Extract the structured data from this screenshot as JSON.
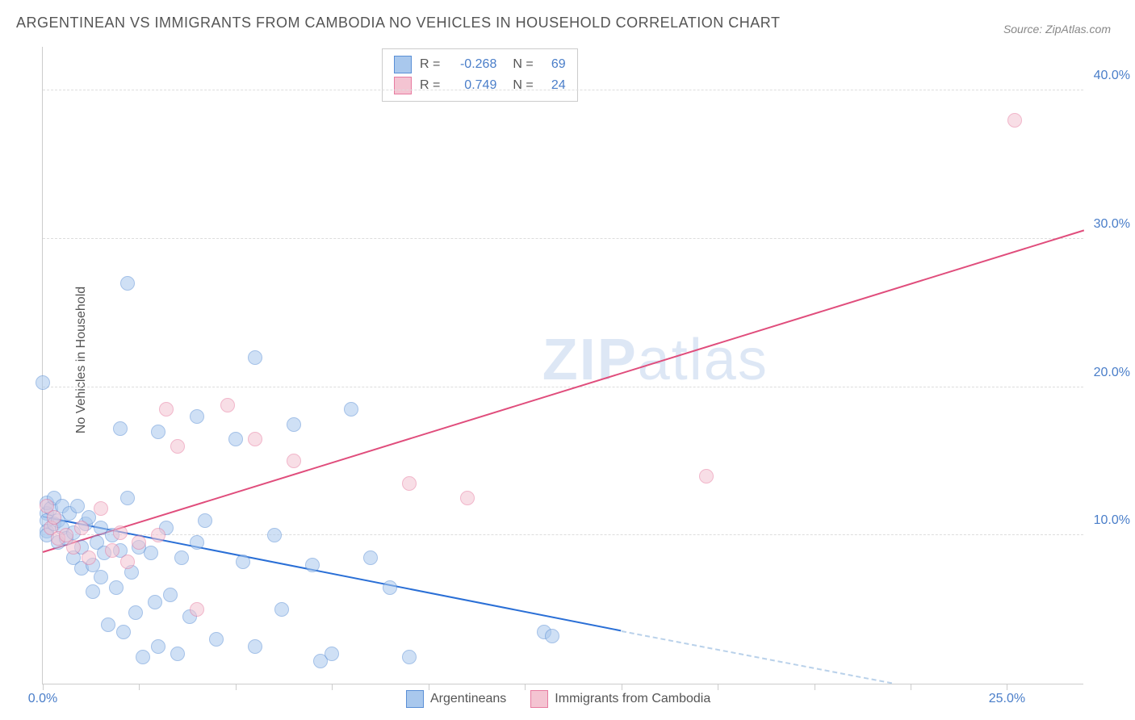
{
  "title": "ARGENTINEAN VS IMMIGRANTS FROM CAMBODIA NO VEHICLES IN HOUSEHOLD CORRELATION CHART",
  "source": "Source: ZipAtlas.com",
  "ylabel": "No Vehicles in Household",
  "watermark_bold": "ZIP",
  "watermark_light": "atlas",
  "chart": {
    "type": "scatter",
    "background_color": "#ffffff",
    "grid_color": "#dddddd",
    "axis_color": "#cccccc",
    "tick_label_color": "#4a7ec9",
    "label_color": "#555555",
    "title_fontsize": 18,
    "label_fontsize": 16,
    "tick_fontsize": 16,
    "xlim": [
      0,
      27
    ],
    "ylim": [
      0,
      43
    ],
    "yticks": [
      10,
      20,
      30,
      40
    ],
    "ytick_labels": [
      "10.0%",
      "20.0%",
      "30.0%",
      "40.0%"
    ],
    "xticks": [
      0,
      2.5,
      5,
      7.5,
      10,
      12.5,
      15,
      17.5,
      20,
      22.5,
      25
    ],
    "xtick_labels_shown": {
      "0": "0.0%",
      "25": "25.0%"
    },
    "marker_radius": 9,
    "marker_stroke_width": 1.5,
    "series": [
      {
        "name": "Argentineans",
        "fill": "#a9c8ed",
        "stroke": "#5a8fd6",
        "fill_opacity": 0.55,
        "R": "-0.268",
        "N": "69",
        "trend": {
          "x1": 0,
          "y1": 11.2,
          "x2": 15,
          "y2": 3.5,
          "color": "#2a6fd6",
          "width": 2
        },
        "trend_dashed": {
          "x1": 15,
          "y1": 3.5,
          "x2": 22,
          "y2": 0,
          "color": "#b9d1ea"
        },
        "points": [
          [
            0.0,
            20.3
          ],
          [
            0.1,
            11.5
          ],
          [
            0.1,
            11.0
          ],
          [
            0.1,
            10.3
          ],
          [
            0.1,
            10.0
          ],
          [
            0.1,
            12.2
          ],
          [
            0.2,
            11.8
          ],
          [
            0.3,
            12.5
          ],
          [
            0.3,
            10.8
          ],
          [
            0.4,
            11.0
          ],
          [
            0.4,
            9.5
          ],
          [
            0.5,
            10.5
          ],
          [
            0.5,
            12.0
          ],
          [
            0.6,
            9.8
          ],
          [
            0.7,
            11.5
          ],
          [
            0.8,
            10.2
          ],
          [
            0.8,
            8.5
          ],
          [
            0.9,
            12.0
          ],
          [
            1.0,
            9.2
          ],
          [
            1.0,
            7.8
          ],
          [
            1.1,
            10.8
          ],
          [
            1.2,
            11.2
          ],
          [
            1.3,
            8.0
          ],
          [
            1.3,
            6.2
          ],
          [
            1.4,
            9.5
          ],
          [
            1.5,
            10.5
          ],
          [
            1.5,
            7.2
          ],
          [
            1.6,
            8.8
          ],
          [
            1.7,
            4.0
          ],
          [
            1.8,
            10.0
          ],
          [
            1.9,
            6.5
          ],
          [
            2.0,
            17.2
          ],
          [
            2.0,
            9.0
          ],
          [
            2.1,
            3.5
          ],
          [
            2.2,
            27.0
          ],
          [
            2.2,
            12.5
          ],
          [
            2.3,
            7.5
          ],
          [
            2.4,
            4.8
          ],
          [
            2.5,
            9.2
          ],
          [
            2.6,
            1.8
          ],
          [
            2.8,
            8.8
          ],
          [
            2.9,
            5.5
          ],
          [
            3.0,
            17.0
          ],
          [
            3.0,
            2.5
          ],
          [
            3.2,
            10.5
          ],
          [
            3.3,
            6.0
          ],
          [
            3.5,
            2.0
          ],
          [
            3.6,
            8.5
          ],
          [
            3.8,
            4.5
          ],
          [
            4.0,
            18.0
          ],
          [
            4.0,
            9.5
          ],
          [
            4.2,
            11.0
          ],
          [
            4.5,
            3.0
          ],
          [
            5.0,
            16.5
          ],
          [
            5.2,
            8.2
          ],
          [
            5.5,
            22.0
          ],
          [
            5.5,
            2.5
          ],
          [
            6.0,
            10.0
          ],
          [
            6.2,
            5.0
          ],
          [
            6.5,
            17.5
          ],
          [
            7.0,
            8.0
          ],
          [
            7.2,
            1.5
          ],
          [
            7.5,
            2.0
          ],
          [
            8.0,
            18.5
          ],
          [
            8.5,
            8.5
          ],
          [
            9.0,
            6.5
          ],
          [
            9.5,
            1.8
          ],
          [
            13.0,
            3.5
          ],
          [
            13.2,
            3.2
          ]
        ]
      },
      {
        "name": "Immigrants from Cambodia",
        "fill": "#f4c4d2",
        "stroke": "#e77ba0",
        "fill_opacity": 0.55,
        "R": "0.749",
        "N": "24",
        "trend": {
          "x1": 0,
          "y1": 8.8,
          "x2": 27,
          "y2": 30.5,
          "color": "#e04d7c",
          "width": 2
        },
        "points": [
          [
            0.1,
            12.0
          ],
          [
            0.2,
            10.5
          ],
          [
            0.3,
            11.2
          ],
          [
            0.4,
            9.8
          ],
          [
            0.6,
            10.0
          ],
          [
            0.8,
            9.2
          ],
          [
            1.0,
            10.5
          ],
          [
            1.2,
            8.5
          ],
          [
            1.5,
            11.8
          ],
          [
            1.8,
            9.0
          ],
          [
            2.0,
            10.2
          ],
          [
            2.2,
            8.2
          ],
          [
            2.5,
            9.5
          ],
          [
            3.0,
            10.0
          ],
          [
            3.2,
            18.5
          ],
          [
            3.5,
            16.0
          ],
          [
            4.0,
            5.0
          ],
          [
            4.8,
            18.8
          ],
          [
            5.5,
            16.5
          ],
          [
            6.5,
            15.0
          ],
          [
            9.5,
            13.5
          ],
          [
            11.0,
            12.5
          ],
          [
            17.2,
            14.0
          ],
          [
            25.2,
            38.0
          ]
        ]
      }
    ],
    "stats_box": {
      "R_label": "R =",
      "N_label": "N ="
    },
    "legend": {
      "series1": "Argentineans",
      "series2": "Immigrants from Cambodia"
    }
  }
}
